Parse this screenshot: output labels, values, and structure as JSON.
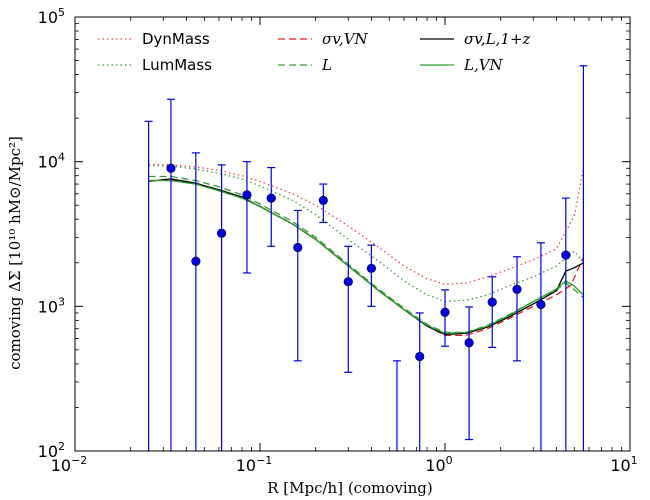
{
  "chart_data": {
    "type": "line",
    "title": "",
    "xlabel": "R [Mpc/h] (comoving)",
    "ylabel": "comoving ΔΣ [10¹⁰ hM⊙/Mpc²]",
    "xscale": "log",
    "yscale": "log",
    "xlim": [
      0.01,
      10
    ],
    "ylim": [
      100,
      100000
    ],
    "grid": false,
    "legend_placement": "top",
    "x_ticks": [
      {
        "base": "10",
        "exp": "−2"
      },
      {
        "base": "10",
        "exp": "−1"
      },
      {
        "base": "10",
        "exp": "0"
      },
      {
        "base": "10",
        "exp": "1"
      }
    ],
    "y_ticks": [
      {
        "base": "10",
        "exp": "2"
      },
      {
        "base": "10",
        "exp": "3"
      },
      {
        "base": "10",
        "exp": "4"
      },
      {
        "base": "10",
        "exp": "5"
      }
    ],
    "series": [
      {
        "name": "DynMass",
        "color": "#e34a4a",
        "style": "dotted",
        "x": [
          0.025,
          0.033,
          0.045,
          0.06,
          0.08,
          0.1,
          0.15,
          0.2,
          0.3,
          0.45,
          0.6,
          0.8,
          1.0,
          1.3,
          1.7,
          2.2,
          3.0,
          4.0,
          5.0,
          5.6
        ],
        "y": [
          9600,
          9500,
          9200,
          8700,
          8000,
          7300,
          6000,
          5000,
          3600,
          2500,
          1900,
          1550,
          1420,
          1450,
          1600,
          1800,
          2100,
          2500,
          4200,
          9000
        ]
      },
      {
        "name": "LumMass",
        "color": "#3a9a3a",
        "style": "dotted",
        "x": [
          0.025,
          0.033,
          0.045,
          0.06,
          0.08,
          0.1,
          0.15,
          0.2,
          0.3,
          0.45,
          0.6,
          0.8,
          1.0,
          1.3,
          1.7,
          2.2,
          3.0,
          4.0,
          5.0,
          5.6
        ],
        "y": [
          9400,
          9300,
          8900,
          8300,
          7600,
          6800,
          5400,
          4300,
          2900,
          2000,
          1500,
          1200,
          1080,
          1100,
          1200,
          1380,
          1600,
          1900,
          2400,
          2000
        ]
      },
      {
        "name": "σv,VN",
        "color": "#dd2222",
        "style": "dashed",
        "x": [
          0.025,
          0.033,
          0.045,
          0.06,
          0.08,
          0.1,
          0.15,
          0.2,
          0.3,
          0.45,
          0.6,
          0.8,
          1.0,
          1.3,
          1.7,
          2.2,
          3.0,
          4.0,
          4.8,
          5.6
        ],
        "y": [
          7400,
          7500,
          7000,
          6300,
          5600,
          4900,
          3700,
          2900,
          1900,
          1250,
          950,
          730,
          630,
          630,
          700,
          820,
          1000,
          1200,
          1400,
          2200
        ]
      },
      {
        "name": "L",
        "color": "#3a9a3a",
        "style": "dashed",
        "x": [
          0.025,
          0.033,
          0.045,
          0.06,
          0.08,
          0.1,
          0.15,
          0.2,
          0.3,
          0.45,
          0.6,
          0.8,
          1.0,
          1.3,
          1.7,
          2.2,
          3.0,
          4.0,
          4.5,
          5.0,
          5.6
        ],
        "y": [
          7900,
          7900,
          7400,
          6700,
          5900,
          5100,
          3850,
          3000,
          1950,
          1280,
          970,
          750,
          660,
          660,
          740,
          870,
          1080,
          1300,
          1450,
          1300,
          1150
        ]
      },
      {
        "name": "σv,L,1+z",
        "color": "#000000",
        "style": "solid",
        "x": [
          0.025,
          0.033,
          0.045,
          0.06,
          0.08,
          0.1,
          0.15,
          0.2,
          0.3,
          0.45,
          0.6,
          0.8,
          1.0,
          1.3,
          1.7,
          2.2,
          3.0,
          4.0,
          4.5,
          5.0,
          5.6
        ],
        "y": [
          7300,
          7600,
          7100,
          6400,
          5700,
          4900,
          3700,
          2900,
          1900,
          1250,
          950,
          730,
          640,
          650,
          720,
          840,
          1040,
          1280,
          1750,
          1850,
          2000
        ]
      },
      {
        "name": "L,VN",
        "color": "#2ca02c",
        "style": "solid",
        "x": [
          0.025,
          0.033,
          0.045,
          0.06,
          0.08,
          0.1,
          0.15,
          0.2,
          0.3,
          0.45,
          0.6,
          0.8,
          1.0,
          1.3,
          1.7,
          2.2,
          3.0,
          4.0,
          4.5,
          5.0,
          5.6
        ],
        "y": [
          7400,
          7400,
          7000,
          6300,
          5600,
          4900,
          3700,
          2900,
          1900,
          1250,
          950,
          740,
          650,
          660,
          730,
          860,
          1080,
          1320,
          1500,
          1380,
          1200
        ]
      }
    ],
    "points": {
      "color": "#0000dd",
      "data": [
        {
          "x": 0.025,
          "y": null,
          "lo": 100,
          "hi": 19000
        },
        {
          "x": 0.033,
          "y": 9000,
          "lo": 100,
          "hi": 27000
        },
        {
          "x": 0.045,
          "y": 2050,
          "lo": 100,
          "hi": 11500
        },
        {
          "x": 0.062,
          "y": 3200,
          "lo": 100,
          "hi": 9500
        },
        {
          "x": 0.085,
          "y": 5900,
          "lo": 1700,
          "hi": 10000
        },
        {
          "x": 0.115,
          "y": 5600,
          "lo": 2600,
          "hi": 9100
        },
        {
          "x": 0.16,
          "y": 2550,
          "lo": 420,
          "hi": 4600
        },
        {
          "x": 0.22,
          "y": 5400,
          "lo": 3800,
          "hi": 7000
        },
        {
          "x": 0.3,
          "y": 1480,
          "lo": 350,
          "hi": 2600
        },
        {
          "x": 0.4,
          "y": 1830,
          "lo": 1000,
          "hi": 2650
        },
        {
          "x": 0.55,
          "y": null,
          "lo": 100,
          "hi": 420
        },
        {
          "x": 0.73,
          "y": 450,
          "lo": 100,
          "hi": 900
        },
        {
          "x": 1.0,
          "y": 910,
          "lo": 530,
          "hi": 1300
        },
        {
          "x": 1.35,
          "y": 560,
          "lo": 120,
          "hi": 990
        },
        {
          "x": 1.8,
          "y": 1070,
          "lo": 520,
          "hi": 1600
        },
        {
          "x": 2.45,
          "y": 1310,
          "lo": 420,
          "hi": 2200
        },
        {
          "x": 3.3,
          "y": 1030,
          "lo": 100,
          "hi": 2750
        },
        {
          "x": 4.5,
          "y": 2260,
          "lo": 100,
          "hi": 5600
        },
        {
          "x": 5.6,
          "y": null,
          "lo": 100,
          "hi": 46000
        }
      ]
    }
  }
}
